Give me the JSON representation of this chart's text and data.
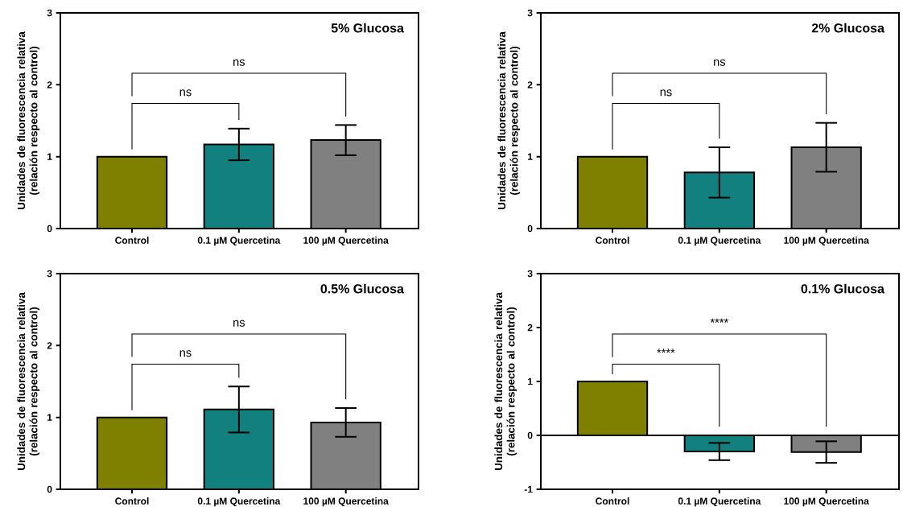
{
  "chart_data": [
    {
      "type": "bar",
      "title": "5% Glucosa",
      "ylabel": "Unidades de fluorescencia relativa (relación respecto al control)",
      "categories": [
        "Control",
        "0.1 µM Quercetina",
        "100 µM Quercetina"
      ],
      "values": [
        1,
        1.17,
        1.23
      ],
      "errors": [
        null,
        0.22,
        0.21
      ],
      "colors": [
        "#808000",
        "#138080",
        "#808080"
      ],
      "ylim": [
        0,
        3
      ],
      "yticks": [
        0,
        1,
        2,
        3
      ],
      "annotations": [
        "ns",
        "ns"
      ]
    },
    {
      "type": "bar",
      "title": "2% Glucosa",
      "ylabel": "Unidades de fluorescencia relativa (relación respecto al control)",
      "categories": [
        "Control",
        "0.1 µM Quercetina",
        "100 µM Quercetina"
      ],
      "values": [
        1,
        0.78,
        1.13
      ],
      "errors": [
        null,
        0.35,
        0.34
      ],
      "colors": [
        "#808000",
        "#138080",
        "#808080"
      ],
      "ylim": [
        0,
        3
      ],
      "yticks": [
        0,
        1,
        2,
        3
      ],
      "annotations": [
        "ns",
        "ns"
      ]
    },
    {
      "type": "bar",
      "title": "0.5% Glucosa",
      "ylabel": "Unidades de fluorescencia relativa (relación respecto al control)",
      "categories": [
        "Control",
        "0.1 µM Quercetina",
        "100 µM Quercetina"
      ],
      "values": [
        1,
        1.11,
        0.93
      ],
      "errors": [
        null,
        0.32,
        0.2
      ],
      "colors": [
        "#808000",
        "#138080",
        "#808080"
      ],
      "ylim": [
        0,
        3
      ],
      "yticks": [
        0,
        1,
        2,
        3
      ],
      "annotations": [
        "ns",
        "ns"
      ]
    },
    {
      "type": "bar",
      "title": "0.1% Glucosa",
      "ylabel": "Unidades de fluorescencia relativa (relación respecto al control)",
      "categories": [
        "Control",
        "0.1 µM Quercetina",
        "100 µM Quercetina"
      ],
      "values": [
        1,
        -0.3,
        -0.31
      ],
      "errors": [
        null,
        0.16,
        0.2
      ],
      "colors": [
        "#808000",
        "#138080",
        "#808080"
      ],
      "ylim": [
        -1,
        3
      ],
      "yticks": [
        -1,
        0,
        1,
        2,
        3
      ],
      "annotations": [
        "****",
        "****"
      ]
    }
  ]
}
